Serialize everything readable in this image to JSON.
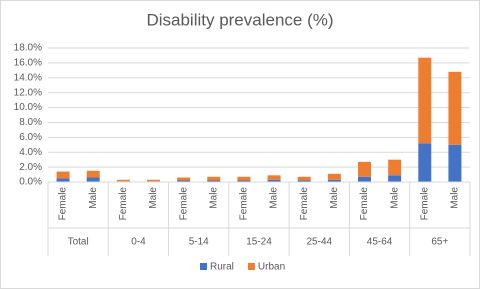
{
  "chart_data": {
    "type": "stacked_bar",
    "title": "Disability prevalence (%)",
    "categories": [
      "Female",
      "Male",
      "Female",
      "Male",
      "Female",
      "Male",
      "Female",
      "Male",
      "Female",
      "Male",
      "Female",
      "Male",
      "Female",
      "Male"
    ],
    "groups": [
      "Total",
      "0-4",
      "5-14",
      "15-24",
      "25-44",
      "45-64",
      "65+"
    ],
    "series": [
      {
        "name": "Rural",
        "color": "#4472c4",
        "values": [
          0.5,
          0.6,
          0.1,
          0.1,
          0.2,
          0.2,
          0.2,
          0.3,
          0.2,
          0.3,
          0.7,
          0.9,
          5.2,
          5.0
        ]
      },
      {
        "name": "Urban",
        "color": "#ed7d31",
        "values": [
          0.9,
          0.9,
          0.2,
          0.2,
          0.4,
          0.5,
          0.5,
          0.6,
          0.5,
          0.8,
          2.0,
          2.1,
          11.5,
          9.8
        ]
      }
    ],
    "ylim": [
      0,
      18
    ],
    "yticks": [
      {
        "value": 0,
        "label": "0.0%"
      },
      {
        "value": 2,
        "label": "2.0%"
      },
      {
        "value": 4,
        "label": "4.0%"
      },
      {
        "value": 6,
        "label": "6.0%"
      },
      {
        "value": 8,
        "label": "8.0%"
      },
      {
        "value": 10,
        "label": "10.0%"
      },
      {
        "value": 12,
        "label": "12.0%"
      },
      {
        "value": 14,
        "label": "14.0%"
      },
      {
        "value": 16,
        "label": "16.0%"
      },
      {
        "value": 18,
        "label": "18.0%"
      }
    ],
    "grid": true,
    "legend": "bottom"
  }
}
